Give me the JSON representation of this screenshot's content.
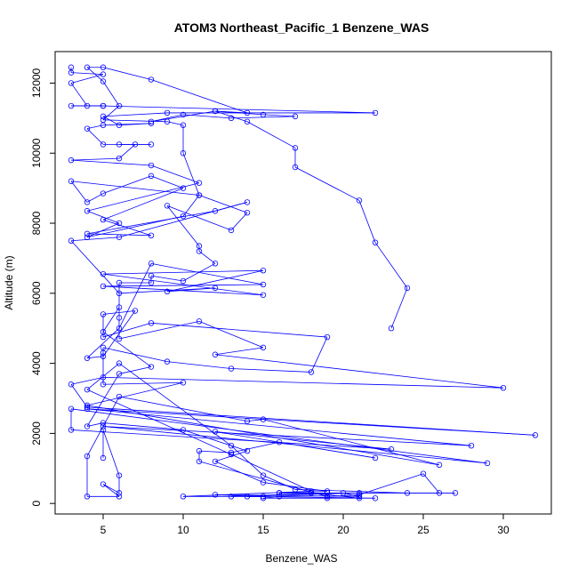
{
  "chart_data": {
    "type": "line",
    "title": "ATOM3 Northeast_Pacific_1 Benzene_WAS",
    "xlabel": "Benzene_WAS",
    "ylabel": "Altitude (m)",
    "xlim": [
      2,
      33
    ],
    "ylim": [
      -300,
      12900
    ],
    "x_ticks": [
      5,
      10,
      15,
      20,
      25,
      30
    ],
    "y_ticks": [
      0,
      2000,
      4000,
      6000,
      8000,
      10000,
      12000
    ],
    "grid": false,
    "legend": "none",
    "series_color": "#0000ff",
    "markers": "open-circle",
    "series": [
      {
        "points": [
          [
            3,
            12450
          ],
          [
            3,
            12300
          ],
          [
            5,
            12250
          ],
          [
            3,
            12000
          ],
          [
            4,
            11350
          ],
          [
            5,
            11350
          ],
          [
            3,
            11350
          ],
          [
            5,
            11350
          ],
          [
            22,
            11150
          ],
          [
            9,
            11150
          ],
          [
            5,
            11050
          ],
          [
            6,
            10800
          ],
          [
            8,
            10850
          ],
          [
            5,
            10800
          ],
          [
            4,
            10700
          ],
          [
            5,
            10250
          ],
          [
            8,
            10250
          ],
          [
            6,
            10250
          ],
          [
            7,
            10250
          ],
          [
            6,
            9850
          ],
          [
            3,
            9800
          ],
          [
            8,
            9650
          ],
          [
            11,
            9150
          ],
          [
            4,
            8350
          ],
          [
            6,
            8000
          ],
          [
            4,
            7600
          ],
          [
            10,
            8200
          ],
          [
            11,
            8800
          ],
          [
            3,
            9200
          ],
          [
            4,
            8600
          ],
          [
            5,
            8850
          ],
          [
            8,
            9350
          ],
          [
            10,
            9000
          ],
          [
            5,
            8100
          ],
          [
            8,
            7650
          ],
          [
            4,
            7700
          ],
          [
            12,
            8350
          ],
          [
            14,
            8600
          ],
          [
            6,
            7600
          ],
          [
            3,
            7500
          ],
          [
            6,
            6000
          ],
          [
            12,
            6150
          ],
          [
            9,
            6050
          ],
          [
            15,
            6650
          ],
          [
            5,
            6550
          ],
          [
            15,
            5950
          ],
          [
            5,
            6200
          ],
          [
            15,
            6250
          ],
          [
            8,
            6850
          ],
          [
            6,
            5000
          ],
          [
            4,
            4150
          ],
          [
            5,
            4200
          ],
          [
            7,
            5500
          ],
          [
            5,
            5400
          ],
          [
            5,
            4750
          ],
          [
            8,
            5150
          ],
          [
            19,
            4750
          ],
          [
            18,
            3750
          ],
          [
            13,
            3850
          ],
          [
            9,
            4050
          ],
          [
            5,
            4450
          ],
          [
            5,
            4300
          ],
          [
            5,
            3400
          ],
          [
            10,
            3450
          ],
          [
            4,
            2800
          ],
          [
            26,
            1100
          ],
          [
            15,
            2400
          ],
          [
            14,
            2350
          ],
          [
            6,
            3050
          ],
          [
            4,
            1350
          ],
          [
            4,
            200
          ],
          [
            6,
            200
          ],
          [
            5,
            550
          ],
          [
            6,
            300
          ],
          [
            6,
            800
          ],
          [
            5,
            2100
          ],
          [
            5,
            1300
          ]
        ]
      },
      {
        "points": [
          [
            23,
            5000
          ],
          [
            24,
            6150
          ],
          [
            22,
            7450
          ],
          [
            21,
            8650
          ],
          [
            17,
            9600
          ],
          [
            17,
            10150
          ],
          [
            14,
            10900
          ],
          [
            12,
            11200
          ],
          [
            15,
            11100
          ],
          [
            17,
            11050
          ],
          [
            13,
            11000
          ],
          [
            10,
            11100
          ],
          [
            8,
            10900
          ],
          [
            12,
            11200
          ],
          [
            14,
            11150
          ],
          [
            8,
            12100
          ],
          [
            5,
            12450
          ],
          [
            4,
            12450
          ],
          [
            5,
            12050
          ],
          [
            6,
            11350
          ],
          [
            5,
            10950
          ],
          [
            9,
            10900
          ],
          [
            10,
            10800
          ],
          [
            10,
            10000
          ],
          [
            11,
            8800
          ],
          [
            14,
            8300
          ],
          [
            13,
            7800
          ],
          [
            9,
            8500
          ],
          [
            11,
            7350
          ],
          [
            11,
            7200
          ],
          [
            12,
            6850
          ],
          [
            10,
            6350
          ],
          [
            8,
            6500
          ],
          [
            8,
            6300
          ],
          [
            6,
            6300
          ],
          [
            6,
            5300
          ],
          [
            6,
            4700
          ],
          [
            11,
            5200
          ],
          [
            15,
            4450
          ],
          [
            12,
            4250
          ],
          [
            30,
            3300
          ],
          [
            5,
            3600
          ],
          [
            3,
            3400
          ],
          [
            4,
            2750
          ],
          [
            32,
            1950
          ],
          [
            4,
            2700
          ],
          [
            28,
            1650
          ],
          [
            5,
            2200
          ],
          [
            29,
            1150
          ],
          [
            3,
            2700
          ],
          [
            3,
            2100
          ],
          [
            23,
            1550
          ],
          [
            12,
            2050
          ],
          [
            22,
            1300
          ],
          [
            16,
            1750
          ],
          [
            13,
            1450
          ],
          [
            11,
            1500
          ],
          [
            11,
            1200
          ],
          [
            19,
            200
          ],
          [
            21,
            250
          ],
          [
            25,
            850
          ],
          [
            26,
            300
          ],
          [
            16,
            300
          ],
          [
            27,
            300
          ],
          [
            24,
            300
          ],
          [
            17,
            400
          ],
          [
            15,
            800
          ],
          [
            13,
            1650
          ],
          [
            6,
            4000
          ],
          [
            4,
            3250
          ],
          [
            13,
            1400
          ],
          [
            18,
            350
          ],
          [
            10,
            200
          ],
          [
            15,
            200
          ],
          [
            12,
            250
          ],
          [
            21,
            200
          ],
          [
            20,
            300
          ],
          [
            14,
            200
          ],
          [
            22,
            150
          ],
          [
            19,
            150
          ],
          [
            15,
            150
          ],
          [
            16,
            200
          ],
          [
            21,
            150
          ],
          [
            18,
            300
          ],
          [
            21,
            300
          ],
          [
            13,
            200
          ],
          [
            19,
            300
          ],
          [
            16,
            300
          ],
          [
            19,
            350
          ],
          [
            15,
            600
          ],
          [
            12,
            1200
          ],
          [
            14,
            1500
          ],
          [
            10,
            2100
          ],
          [
            5,
            2300
          ],
          [
            4,
            2200
          ],
          [
            6,
            3700
          ],
          [
            8,
            3900
          ],
          [
            5,
            4900
          ],
          [
            6,
            5600
          ]
        ]
      }
    ]
  }
}
